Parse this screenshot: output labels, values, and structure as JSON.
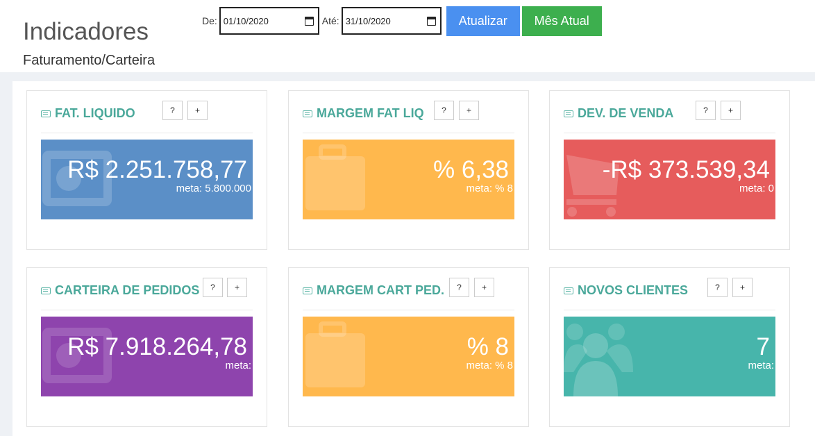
{
  "header": {
    "title": "Indicadores",
    "subtitle": "Faturamento/Carteira"
  },
  "filters": {
    "from_label": "De:",
    "from_value": "01/10/2020",
    "to_label": "Até:",
    "to_value": "31/10/2020",
    "refresh_label": "Atualizar",
    "current_month_label": "Mês Atual"
  },
  "cards": [
    {
      "title": "FAT. LIQUIDO",
      "value": "R$ 2.251.758,77",
      "meta": "meta: 5.800.000",
      "color": "#5b8fc7",
      "icon": "money-icon",
      "help": "?",
      "expand": "+"
    },
    {
      "title": "MARGEM FAT LIQ",
      "value": "% 6,38",
      "meta": "meta: % 8",
      "color": "#ffb84d",
      "icon": "briefcase-icon",
      "help": "?",
      "expand": "+"
    },
    {
      "title": "DEV. DE VENDA",
      "value": "-R$ 373.539,34",
      "meta": "meta: 0",
      "color": "#e65c5c",
      "icon": "cart-icon",
      "help": "?",
      "expand": "+"
    },
    {
      "title": "CARTEIRA DE PEDIDOS",
      "value": "R$ 7.918.264,78",
      "meta": "meta:",
      "color": "#8e44ad",
      "icon": "money-icon",
      "help": "?",
      "expand": "+"
    },
    {
      "title": "MARGEM CART PED.",
      "value": "% 8",
      "meta": "meta: % 8",
      "color": "#ffb84d",
      "icon": "briefcase-icon",
      "help": "?",
      "expand": "+"
    },
    {
      "title": "NOVOS CLIENTES",
      "value": "7",
      "meta": "meta:",
      "color": "#47b5ab",
      "icon": "users-icon",
      "help": "?",
      "expand": "+"
    }
  ]
}
